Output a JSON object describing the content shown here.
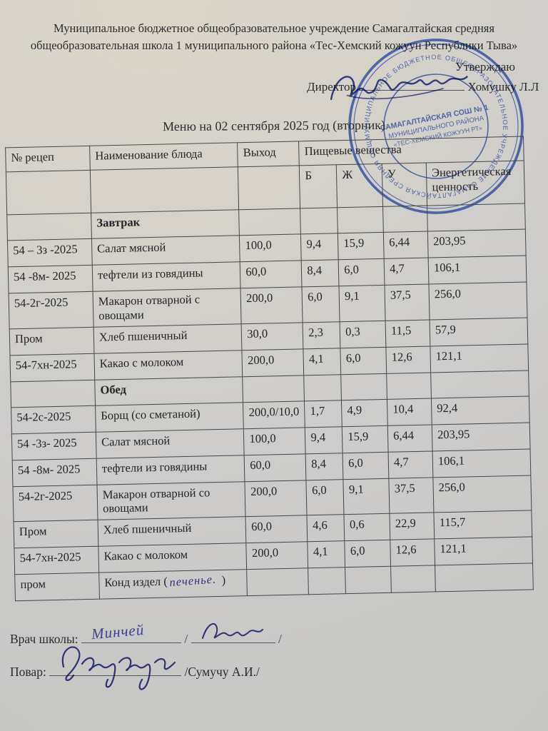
{
  "document": {
    "org_header_line1": "Муниципальное бюджетное общеобразовательное учреждение Самагалтайская средняя",
    "org_header_line2": "общеобразовательная школа 1 муниципального района «Тес-Хемский кожуун Республики Тыва»",
    "approve_label": "Утверждаю",
    "director_label": "Директор",
    "director_name": "Хомушку Л.Л",
    "title": "Меню на 02 сентября 2025 год (вторник)"
  },
  "stamp": {
    "ring_text": "МУНИЦИПАЛЬНОЕ БЮДЖЕТНОЕ ОБЩЕОБРАЗОВАТЕЛЬНОЕ УЧРЕЖДЕНИЕ САМАГАЛТАЙСКАЯ СРЕДНЯЯ ОБЩЕОБРАЗОВАТЕЛЬНАЯ ШКОЛА 1 • РЕСПУБЛИКИ ТЫВА •",
    "center_line1": "САМАГАЛТАЙСКАЯ СОШ № 1",
    "center_line2": "МУНИЦИПАЛЬНОГО РАЙОНА",
    "center_line3": "«ТЕС-ХЕМСКИЙ КОЖУУН РТ»"
  },
  "table": {
    "headers": {
      "col_recipe": "№ рецеп",
      "col_dish": "Наименование блюда",
      "col_output": "Выход",
      "col_nutrients": "Пищевые вещества",
      "col_protein": "Б",
      "col_fat": "Ж",
      "col_carbs": "У",
      "col_energy": "Энергетическая ценность"
    },
    "rows": [
      {
        "section": true,
        "id": "",
        "dish": "Завтрак",
        "out": "",
        "b": "",
        "f": "",
        "c": "",
        "kcal": ""
      },
      {
        "section": false,
        "id": "54 – 3з   -2025",
        "dish": "Салат мясной",
        "out": "100,0",
        "b": "9,4",
        "f": "15,9",
        "c": "6,44",
        "kcal": "203,95"
      },
      {
        "section": false,
        "id": "54 -8м- 2025",
        "dish": "тефтели из говядины",
        "out": "60,0",
        "b": "8,4",
        "f": "6,0",
        "c": "4,7",
        "kcal": "106,1"
      },
      {
        "section": false,
        "id": "54-2г-2025",
        "dish": "Макарон отварной с овощами",
        "out": "200,0",
        "b": "6,0",
        "f": "9,1",
        "c": "37,5",
        "kcal": "256,0"
      },
      {
        "section": false,
        "id": "Пром",
        "dish": "Хлеб пшеничный",
        "out": "30,0",
        "b": "2,3",
        "f": "0,3",
        "c": "11,5",
        "kcal": "57,9"
      },
      {
        "section": false,
        "id": "54-7хн-2025",
        "dish": "Какао с молоком",
        "out": "200,0",
        "b": "4,1",
        "f": "6,0",
        "c": "12,6",
        "kcal": "121,1"
      },
      {
        "section": true,
        "id": "",
        "dish": "Обед",
        "out": "",
        "b": "",
        "f": "",
        "c": "",
        "kcal": ""
      },
      {
        "section": false,
        "id": "54-2с-2025",
        "dish": "Борщ  (со сметаной)",
        "out": "200,0/10,0",
        "b": "1,7",
        "f": "4,9",
        "c": "10,4",
        "kcal": "92,4"
      },
      {
        "section": false,
        "id": "54 -3з- 2025",
        "dish": "Салат мясной",
        "out": "100,0",
        "b": "9,4",
        "f": "15,9",
        "c": "6,44",
        "kcal": "203,95"
      },
      {
        "section": false,
        "id": "54 -8м- 2025",
        "dish": "тефтели из говядины",
        "out": "60,0",
        "b": "8,4",
        "f": "6,0",
        "c": "4,7",
        "kcal": "106,1"
      },
      {
        "section": false,
        "id": "54-2г-2025",
        "dish": "Макарон отварной со овощами",
        "out": "200,0",
        "b": "6,0",
        "f": "9,1",
        "c": "37,5",
        "kcal": "256,0"
      },
      {
        "section": false,
        "id": "Пром",
        "dish": "Хлеб пшеничный",
        "out": "60,0",
        "b": "4,6",
        "f": "0,6",
        "c": "22,9",
        "kcal": "115,7"
      },
      {
        "section": false,
        "id": "54-7хн-2025",
        "dish": "Какао с молоком",
        "out": "200,0",
        "b": "4,1",
        "f": "6,0",
        "c": "12,6",
        "kcal": "121,1"
      },
      {
        "section": false,
        "id": "пром",
        "dish": "Конд издел (",
        "hand": "печенье.",
        "hand_suffix": " )",
        "out": "",
        "b": "",
        "f": "",
        "c": "",
        "kcal": ""
      }
    ]
  },
  "signatures": {
    "doctor_label": "Врач школы:",
    "doctor_handwritten": "Минчей",
    "doctor_separator1": "/",
    "doctor_separator2": "/",
    "cook_label": "Повар:",
    "cook_name": "/Сумучу А.И./"
  }
}
